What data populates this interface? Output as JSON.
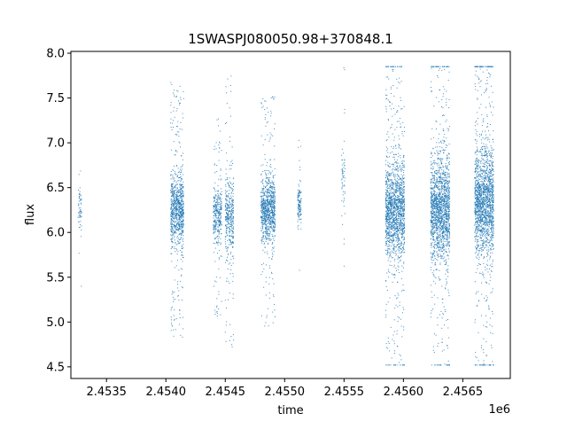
{
  "chart_data": {
    "type": "scatter",
    "title": "1SWASPJ080050.98+370848.1",
    "xlabel": "time",
    "ylabel": "flux",
    "x_offset_label": "1e6",
    "x_multiplier": 1000000,
    "xlim": [
      2453200,
      2456900
    ],
    "ylim": [
      4.37,
      8.02
    ],
    "x_tick_values": [
      2453500,
      2454000,
      2454500,
      2455000,
      2455500,
      2456000,
      2456500
    ],
    "x_tick_labels": [
      "2.4535",
      "2.4540",
      "2.4545",
      "2.4550",
      "2.4555",
      "2.4560",
      "2.4565"
    ],
    "y_ticks": [
      4.5,
      5.0,
      5.5,
      6.0,
      6.5,
      7.0,
      7.5,
      8.0
    ],
    "y_tick_labels": [
      "4.5",
      "5.0",
      "5.5",
      "6.0",
      "6.5",
      "7.0",
      "7.5",
      "8.0"
    ],
    "grid": false,
    "legend": "none",
    "marker_color": "#1f77b4",
    "series": [
      {
        "clusters": [
          {
            "x_range": [
              2453260,
              2453290
            ],
            "y_center": 6.25,
            "y_spread": 0.35,
            "count": 60
          },
          {
            "x_range": [
              2454040,
              2454150
            ],
            "y_center": 6.25,
            "y_spread": 0.55,
            "count": 900
          },
          {
            "x_range": [
              2454400,
              2454470
            ],
            "y_center": 6.2,
            "y_spread": 0.45,
            "count": 350
          },
          {
            "x_range": [
              2454500,
              2454570
            ],
            "y_center": 6.2,
            "y_spread": 0.6,
            "count": 400
          },
          {
            "x_range": [
              2454800,
              2454920
            ],
            "y_center": 6.25,
            "y_spread": 0.5,
            "count": 900
          },
          {
            "x_range": [
              2455110,
              2455140
            ],
            "y_center": 6.3,
            "y_spread": 0.3,
            "count": 120
          },
          {
            "x_range": [
              2455480,
              2455510
            ],
            "y_center": 6.6,
            "y_spread": 0.5,
            "count": 60
          },
          {
            "x_range": [
              2455850,
              2456010
            ],
            "y_center": 6.25,
            "y_spread": 0.75,
            "count": 1600
          },
          {
            "x_range": [
              2456230,
              2456390
            ],
            "y_center": 6.25,
            "y_spread": 0.8,
            "count": 1700
          },
          {
            "x_range": [
              2456600,
              2456760
            ],
            "y_center": 6.35,
            "y_spread": 0.85,
            "count": 1800
          }
        ],
        "y_range": [
          4.52,
          7.85
        ]
      }
    ]
  }
}
